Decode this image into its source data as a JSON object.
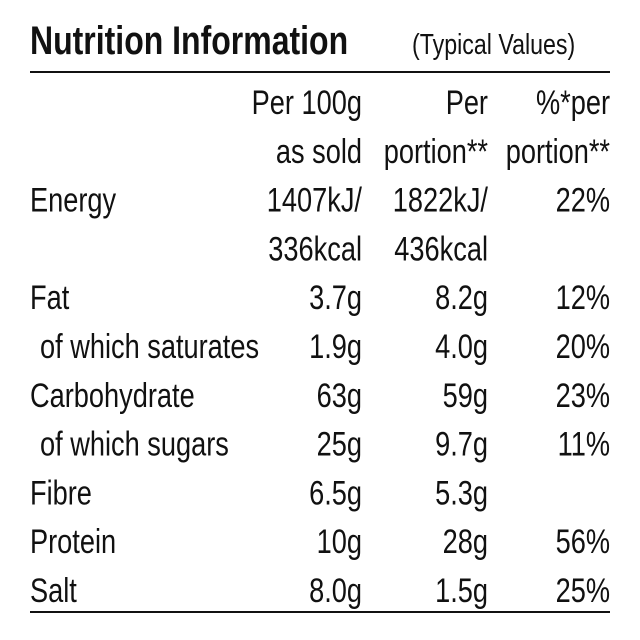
{
  "title": "Nutrition Information",
  "subtitle": "(Typical Values)",
  "table": {
    "header": [
      [
        "Per 100g",
        "as sold"
      ],
      [
        "Per",
        "portion**"
      ],
      [
        "%*per",
        "portion**"
      ]
    ],
    "rows": [
      {
        "label": "Energy",
        "cells": [
          [
            "1407kJ/",
            "336kcal"
          ],
          [
            "1822kJ/",
            "436kcal"
          ],
          [
            "22%"
          ]
        ]
      },
      {
        "label": "Fat",
        "cells": [
          [
            "3.7g"
          ],
          [
            "8.2g"
          ],
          [
            "12%"
          ]
        ],
        "sub": {
          "label": "of which saturates",
          "cells": [
            [
              "1.9g"
            ],
            [
              "4.0g"
            ],
            [
              "20%"
            ]
          ]
        }
      },
      {
        "label": "Carbohydrate",
        "cells": [
          [
            "63g"
          ],
          [
            "59g"
          ],
          [
            "23%"
          ]
        ],
        "sub": {
          "label": "of which sugars",
          "cells": [
            [
              "25g"
            ],
            [
              "9.7g"
            ],
            [
              "11%"
            ]
          ]
        }
      },
      {
        "label": "Fibre",
        "cells": [
          [
            "6.5g"
          ],
          [
            "5.3g"
          ]
        ]
      },
      {
        "label": "Protein",
        "cells": [
          [
            "10g"
          ],
          [
            "28g"
          ],
          [
            "56%"
          ]
        ]
      },
      {
        "label": "Salt",
        "cells": [
          [
            "8.0g"
          ],
          [
            "1.5g"
          ],
          [
            "25%"
          ]
        ]
      }
    ]
  }
}
